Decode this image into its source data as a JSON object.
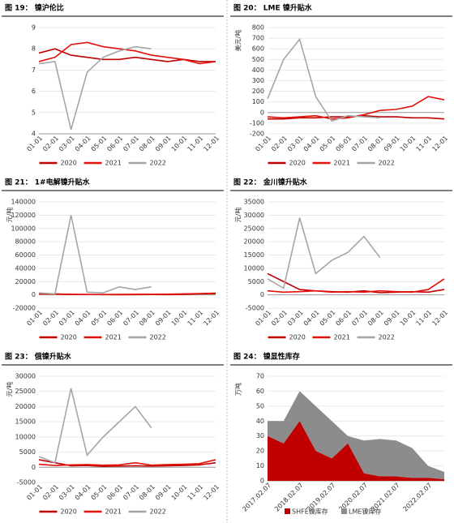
{
  "chart_data": [
    {
      "type": "line",
      "title": "图 19： 镍沪伦比",
      "categories": [
        "01-01",
        "02-01",
        "03-01",
        "04-01",
        "05-01",
        "06-01",
        "07-01",
        "08-01",
        "09-01",
        "10-01",
        "11-01",
        "12-01"
      ],
      "series": [
        {
          "name": "2020",
          "color": "#c00000",
          "values": [
            7.8,
            8.0,
            7.7,
            7.6,
            7.5,
            7.5,
            7.6,
            7.5,
            7.4,
            7.5,
            7.4,
            7.4
          ]
        },
        {
          "name": "2021",
          "color": "#e3120b",
          "values": [
            7.4,
            7.6,
            8.2,
            8.3,
            8.1,
            8.0,
            7.9,
            7.7,
            7.6,
            7.5,
            7.3,
            7.4
          ]
        },
        {
          "name": "2022",
          "color": "#a6a6a6",
          "values": [
            7.3,
            7.4,
            4.2,
            6.9,
            7.6,
            7.9,
            8.1,
            8.0,
            null,
            null,
            null,
            null
          ]
        }
      ],
      "ylim": [
        4,
        9
      ],
      "yticks": [
        4,
        5,
        6,
        7,
        8,
        9
      ],
      "grid": true
    },
    {
      "type": "line",
      "title": "图 20： LME 镍升贴水",
      "y_unit": "美元/吨",
      "categories": [
        "01-01",
        "02-01",
        "03-01",
        "04-01",
        "05-01",
        "06-01",
        "07-01",
        "08-01",
        "09-01",
        "10-01",
        "11-01",
        "12-01"
      ],
      "series": [
        {
          "name": "2020",
          "color": "#c00000",
          "values": [
            -60,
            -60,
            -50,
            -50,
            -40,
            -40,
            -30,
            -40,
            -40,
            -50,
            -50,
            -60
          ]
        },
        {
          "name": "2021",
          "color": "#e3120b",
          "values": [
            -40,
            -50,
            -40,
            -30,
            -60,
            -50,
            -20,
            20,
            30,
            60,
            150,
            120
          ]
        },
        {
          "name": "2022",
          "color": "#a6a6a6",
          "values": [
            130,
            500,
            690,
            150,
            -80,
            -30,
            -40,
            -50,
            null,
            null,
            null,
            null
          ]
        }
      ],
      "ylim": [
        -200,
        800
      ],
      "yticks": [
        -200,
        -100,
        0,
        100,
        200,
        300,
        400,
        500,
        600,
        700,
        800
      ],
      "grid": true
    },
    {
      "type": "line",
      "title": "图 21： 1#电解镍升贴水",
      "y_unit": "元/吨",
      "categories": [
        "01-01",
        "02-01",
        "03-01",
        "04-01",
        "05-01",
        "06-01",
        "07-01",
        "08-01",
        "09-01",
        "10-01",
        "11-01",
        "12-01"
      ],
      "series": [
        {
          "name": "2020",
          "color": "#c00000",
          "values": [
            2000,
            1500,
            500,
            600,
            300,
            200,
            300,
            500,
            400,
            600,
            1500,
            1800
          ]
        },
        {
          "name": "2021",
          "color": "#e3120b",
          "values": [
            1500,
            1000,
            800,
            600,
            500,
            700,
            800,
            900,
            1000,
            1500,
            2000,
            2500
          ]
        },
        {
          "name": "2022",
          "color": "#a6a6a6",
          "values": [
            3000,
            1500,
            120000,
            4000,
            3000,
            12000,
            8000,
            12000,
            null,
            null,
            null,
            null
          ]
        }
      ],
      "ylim": [
        -20000,
        140000
      ],
      "yticks": [
        -20000,
        0,
        20000,
        40000,
        60000,
        80000,
        100000,
        120000,
        140000
      ],
      "grid": true
    },
    {
      "type": "line",
      "title": "图 22： 金川镍升贴水",
      "y_unit": "元/吨",
      "categories": [
        "01-01",
        "02-01",
        "03-01",
        "04-01",
        "05-01",
        "06-01",
        "07-01",
        "08-01",
        "09-01",
        "10-01",
        "11-01",
        "12-01"
      ],
      "series": [
        {
          "name": "2020",
          "color": "#c00000",
          "values": [
            8000,
            5000,
            2000,
            1500,
            1200,
            1000,
            1500,
            800,
            1000,
            1200,
            1000,
            2000
          ]
        },
        {
          "name": "2021",
          "color": "#e3120b",
          "values": [
            1500,
            1000,
            1200,
            1500,
            1000,
            1200,
            1000,
            1500,
            1200,
            1000,
            2000,
            6000
          ]
        },
        {
          "name": "2022",
          "color": "#a6a6a6",
          "values": [
            6000,
            2500,
            29000,
            8000,
            13000,
            16000,
            22000,
            14000,
            null,
            null,
            null,
            null
          ]
        }
      ],
      "ylim": [
        -5000,
        35000
      ],
      "yticks": [
        -5000,
        0,
        5000,
        10000,
        15000,
        20000,
        25000,
        30000,
        35000
      ],
      "grid": true
    },
    {
      "type": "line",
      "title": "图 23： 俄镍升贴水",
      "y_unit": "元/吨",
      "categories": [
        "01-01",
        "02-01",
        "03-01",
        "04-01",
        "05-01",
        "06-01",
        "07-01",
        "08-01",
        "09-01",
        "10-01",
        "11-01",
        "12-01"
      ],
      "series": [
        {
          "name": "2020",
          "color": "#c00000",
          "values": [
            2500,
            1500,
            500,
            600,
            300,
            400,
            500,
            400,
            500,
            600,
            800,
            1500
          ]
        },
        {
          "name": "2021",
          "color": "#e3120b",
          "values": [
            1000,
            600,
            800,
            900,
            700,
            800,
            1500,
            700,
            900,
            1000,
            1200,
            2500
          ]
        },
        {
          "name": "2022",
          "color": "#a6a6a6",
          "values": [
            3500,
            1500,
            26000,
            4000,
            10000,
            15000,
            20000,
            13000,
            null,
            null,
            null,
            null
          ]
        }
      ],
      "ylim": [
        -5000,
        30000
      ],
      "yticks": [
        -5000,
        0,
        5000,
        10000,
        15000,
        20000,
        25000,
        30000
      ],
      "grid": true
    },
    {
      "type": "area",
      "title": "图 24： 镍显性库存",
      "y_unit": "万吨",
      "categories": [
        "2017.02.07",
        null,
        "2018.02.07",
        null,
        "2019.02.07",
        null,
        "2020.02.07",
        null,
        "2021.02.07",
        null,
        "2022.02.07",
        null
      ],
      "series": [
        {
          "name": "SHFE镍库存",
          "color": "#c00000",
          "values": [
            30,
            25,
            40,
            20,
            15,
            25,
            5,
            3,
            3,
            2,
            2,
            1
          ]
        },
        {
          "name": "LME镍库存",
          "color": "#8c8c8c",
          "values": [
            10,
            15,
            20,
            30,
            25,
            5,
            22,
            25,
            24,
            20,
            8,
            5
          ]
        }
      ],
      "ylim": [
        0,
        70
      ],
      "yticks": [
        0,
        10,
        20,
        30,
        40,
        50,
        60,
        70
      ],
      "grid": true
    }
  ]
}
